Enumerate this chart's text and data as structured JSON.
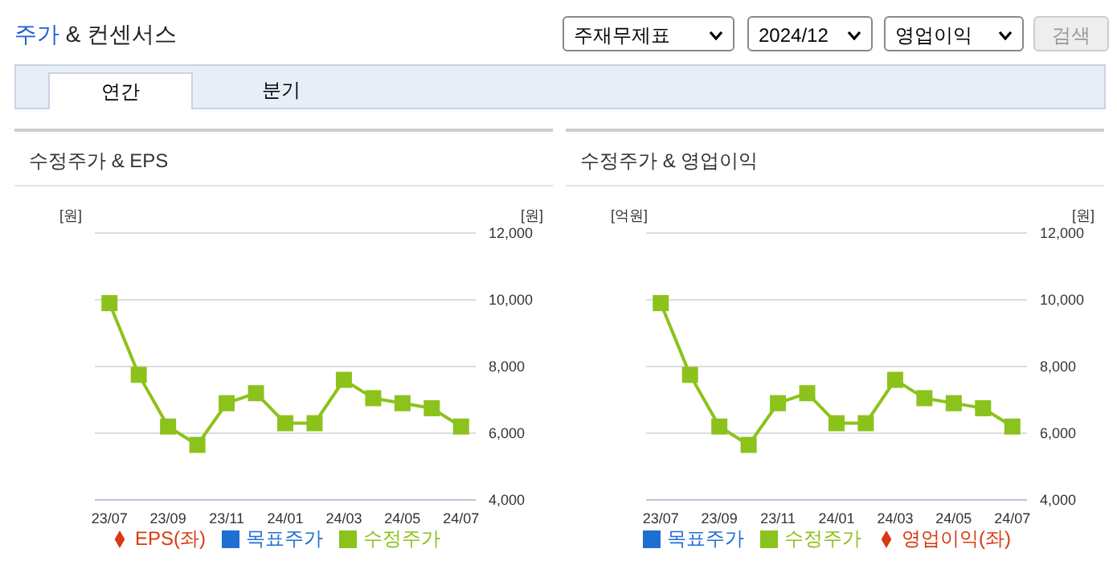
{
  "chart_data": [
    {
      "type": "other",
      "title": "주가 & 컨센서스",
      "annotations": [
        "주재무제표",
        "2024/12",
        "영업이익",
        "검색",
        "연간",
        "분기"
      ]
    },
    {
      "type": "line",
      "title": "수정주가 & EPS",
      "ylabel": "[원]",
      "y2label": "[원]",
      "categories": [
        "23/07",
        null,
        "23/09",
        null,
        "23/11",
        null,
        "24/01",
        null,
        "24/03",
        null,
        "24/05",
        null,
        "24/07"
      ],
      "series": [
        {
          "name": "목표주가",
          "type": "bar",
          "color": "#1f6ed4",
          "values": [
            null,
            null,
            null,
            null,
            null,
            null,
            null,
            null,
            null,
            null,
            null,
            null,
            null
          ]
        },
        {
          "name": "EPS(좌)",
          "type": "line",
          "marker": "diamond",
          "color": "#d83a12",
          "values": [
            null,
            null,
            null,
            null,
            null,
            null,
            null,
            null,
            null,
            null,
            null,
            null,
            null
          ]
        },
        {
          "name": "수정주가",
          "type": "line",
          "marker": "square",
          "axis": "y2",
          "color": "#8cc21c",
          "values": [
            9900,
            7750,
            6200,
            5650,
            6900,
            7200,
            6300,
            6300,
            7600,
            7050,
            6900,
            6750,
            6200
          ]
        }
      ],
      "y2lim": [
        4000,
        12000
      ],
      "y2ticks": [
        {
          "value": 4000,
          "label": "4,000"
        },
        {
          "value": 6000,
          "label": "6,000"
        },
        {
          "value": 8000,
          "label": "8,000"
        },
        {
          "value": 10000,
          "label": "10,000"
        },
        {
          "value": 12000,
          "label": "12,000"
        }
      ],
      "grid": "y",
      "legend": "bottom"
    },
    {
      "type": "line",
      "title": "수정주가 & 영업이익",
      "ylabel": "[억원]",
      "y2label": "[원]",
      "categories": [
        "23/07",
        null,
        "23/09",
        null,
        "23/11",
        null,
        "24/01",
        null,
        "24/03",
        null,
        "24/05",
        null,
        "24/07"
      ],
      "series": [
        {
          "name": "목표주가",
          "type": "bar",
          "color": "#1f6ed4",
          "values": [
            null,
            null,
            null,
            null,
            null,
            null,
            null,
            null,
            null,
            null,
            null,
            null,
            null
          ]
        },
        {
          "name": "영업이익(좌)",
          "type": "line",
          "marker": "diamond",
          "color": "#d83a12",
          "values": [
            null,
            null,
            null,
            null,
            null,
            null,
            null,
            null,
            null,
            null,
            null,
            null,
            null
          ]
        },
        {
          "name": "수정주가",
          "type": "line",
          "marker": "square",
          "axis": "y2",
          "color": "#8cc21c",
          "values": [
            9900,
            7750,
            6200,
            5650,
            6900,
            7200,
            6300,
            6300,
            7600,
            7050,
            6900,
            6750,
            6200
          ]
        }
      ],
      "y2lim": [
        4000,
        12000
      ],
      "y2ticks": [
        {
          "value": 4000,
          "label": "4,000"
        },
        {
          "value": 6000,
          "label": "6,000"
        },
        {
          "value": 8000,
          "label": "8,000"
        },
        {
          "value": 10000,
          "label": "10,000"
        },
        {
          "value": 12000,
          "label": "12,000"
        }
      ],
      "grid": "y",
      "legend": "bottom"
    }
  ]
}
